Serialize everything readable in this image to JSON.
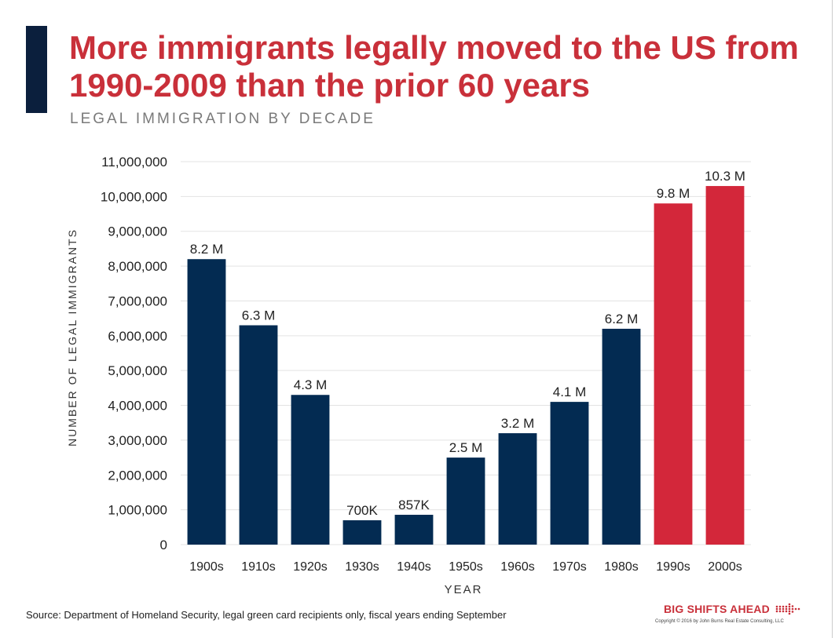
{
  "header": {
    "title": "More immigrants legally moved to the US from 1990-2009 than the prior 60 years",
    "subtitle": "LEGAL IMMIGRATION BY DECADE"
  },
  "chart_data": {
    "type": "bar",
    "title": "LEGAL IMMIGRATION BY DECADE",
    "xlabel": "YEAR",
    "ylabel": "NUMBER OF LEGAL IMMIGRANTS",
    "categories": [
      "1900s",
      "1910s",
      "1920s",
      "1930s",
      "1940s",
      "1950s",
      "1960s",
      "1970s",
      "1980s",
      "1990s",
      "2000s"
    ],
    "values": [
      8200000,
      6300000,
      4300000,
      700000,
      857000,
      2500000,
      3200000,
      4100000,
      6200000,
      9800000,
      10300000
    ],
    "data_labels": [
      "8.2 M",
      "6.3 M",
      "4.3 M",
      "700K",
      "857K",
      "2.5 M",
      "3.2 M",
      "4.1 M",
      "6.2 M",
      "9.8 M",
      "10.3 M"
    ],
    "ylim": [
      0,
      11000000
    ],
    "yticks": [
      0,
      1000000,
      2000000,
      3000000,
      4000000,
      5000000,
      6000000,
      7000000,
      8000000,
      9000000,
      10000000,
      11000000
    ],
    "ytick_labels": [
      "0",
      "1,000,000",
      "2,000,000",
      "3,000,000",
      "4,000,000",
      "5,000,000",
      "6,000,000",
      "7,000,000",
      "8,000,000",
      "9,000,000",
      "10,000,000",
      "11,000,000"
    ],
    "grid": true,
    "highlighted_categories": [
      "1990s",
      "2000s"
    ],
    "colors": {
      "default_bar": "#032b52",
      "highlight_bar": "#d3273a",
      "grid": "#e3e3e3",
      "axis_text": "#222222"
    }
  },
  "footer": {
    "source": "Source: Department of Homeland Security, legal green card recipients only, fiscal years ending September",
    "brand": "BIG SHIFTS AHEAD",
    "brand_icon": "arrow-dots-icon",
    "copyright": "Copyright © 2016 by John Burns Real Estate Consulting, LLC"
  },
  "colors": {
    "title_red": "#c9303a",
    "accent_navy": "#0b1f3d",
    "subtitle_gray": "#7a7a7a"
  }
}
